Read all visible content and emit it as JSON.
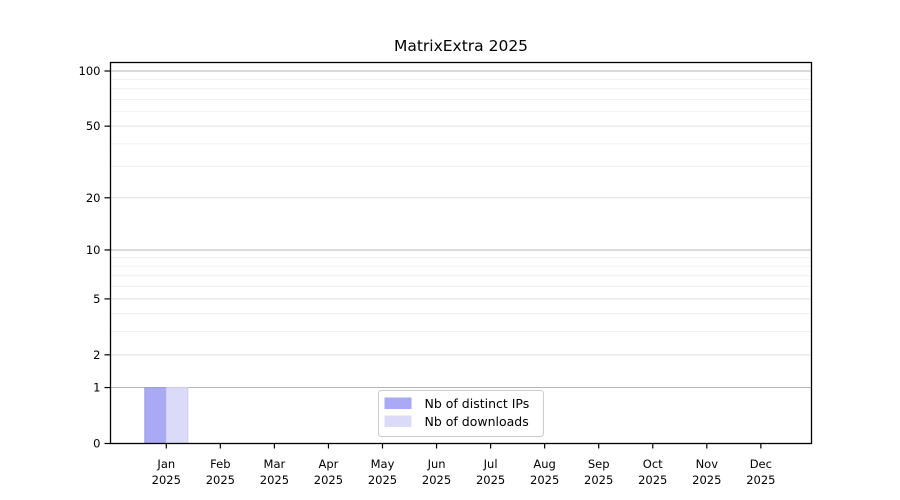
{
  "chart_data": {
    "type": "bar",
    "title": "MatrixExtra 2025",
    "year_label": "2025",
    "months": [
      "Jan",
      "Feb",
      "Mar",
      "Apr",
      "May",
      "Jun",
      "Jul",
      "Aug",
      "Sep",
      "Oct",
      "Nov",
      "Dec"
    ],
    "categories": [
      "Jan 2025",
      "Feb 2025",
      "Mar 2025",
      "Apr 2025",
      "May 2025",
      "Jun 2025",
      "Jul 2025",
      "Aug 2025",
      "Sep 2025",
      "Oct 2025",
      "Nov 2025",
      "Dec 2025"
    ],
    "series": [
      {
        "name": "Nb of distinct IPs",
        "color": "#a9a9f5",
        "edge_color": "#9a9aec",
        "values": [
          1,
          0,
          0,
          0,
          0,
          0,
          0,
          0,
          0,
          0,
          0,
          0
        ]
      },
      {
        "name": "Nb of downloads",
        "color": "#dbdbf8",
        "edge_color": "#ccccf0",
        "values": [
          1,
          0,
          0,
          0,
          0,
          0,
          0,
          0,
          0,
          0,
          0,
          0
        ]
      }
    ],
    "xlabel": "",
    "ylabel": "",
    "y_axis": {
      "scale": "log10(value+1)",
      "tick_values": [
        0,
        1,
        2,
        5,
        10,
        20,
        50,
        100
      ],
      "minor_gridline_values": [
        3,
        4,
        6,
        7,
        8,
        9,
        30,
        40,
        60,
        70,
        80,
        90
      ],
      "ylim": [
        0,
        110
      ]
    },
    "legend": {
      "position": "lower center",
      "entries": [
        "Nb of distinct IPs",
        "Nb of downloads"
      ],
      "border_color": "#cccccc",
      "background": "#ffffff"
    },
    "grid": {
      "decade_line_color": "#b6b6b6",
      "major_line_color": "#e0e0e0",
      "minor_line_color": "#efefef"
    },
    "spine_color": "#000000",
    "background": "#ffffff"
  }
}
